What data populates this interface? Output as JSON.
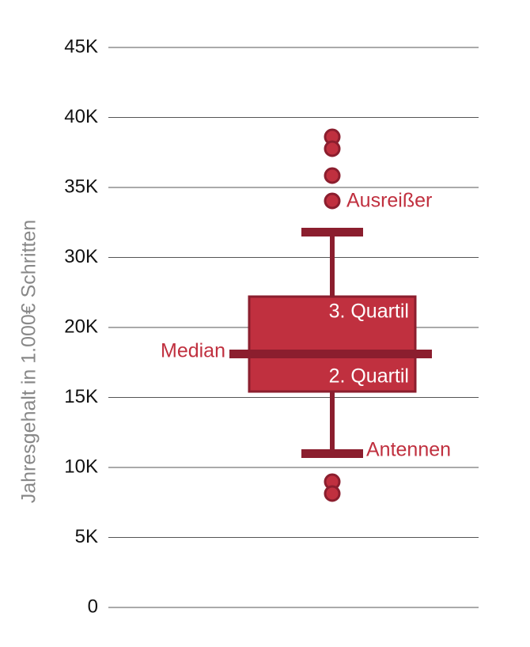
{
  "axis": {
    "label": "Jahresgehalt in 1.000€ Schritten",
    "ticks": [
      "45K",
      "40K",
      "35K",
      "30K",
      "20K",
      "15K",
      "10K",
      "5K",
      "0"
    ]
  },
  "annotations": {
    "outliers": "Ausreißer",
    "upper_quartile": "3. Quartil",
    "median": "Median",
    "lower_quartile": "2. Quartil",
    "whiskers": "Antennen"
  }
}
